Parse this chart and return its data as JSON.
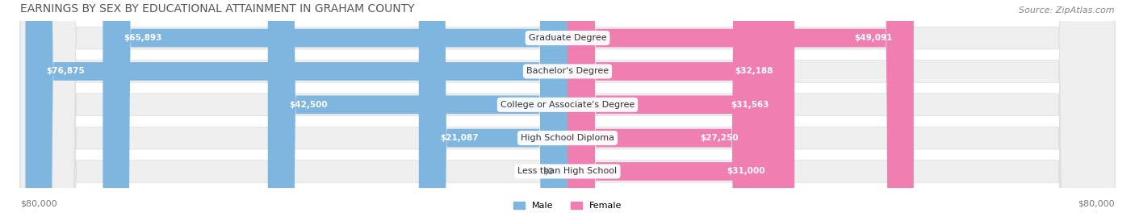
{
  "title": "EARNINGS BY SEX BY EDUCATIONAL ATTAINMENT IN GRAHAM COUNTY",
  "source": "Source: ZipAtlas.com",
  "categories": [
    "Less than High School",
    "High School Diploma",
    "College or Associate's Degree",
    "Bachelor's Degree",
    "Graduate Degree"
  ],
  "male_values": [
    0,
    21087,
    42500,
    76875,
    65893
  ],
  "female_values": [
    31000,
    27250,
    31563,
    32188,
    49091
  ],
  "male_color": "#7EB6E0",
  "female_color": "#F07EB0",
  "bar_bg_color": "#EFEFEF",
  "bar_border_color": "#DDDDDD",
  "max_value": 80000,
  "xlabel_left": "$80,000",
  "xlabel_right": "$80,000",
  "title_fontsize": 10,
  "source_fontsize": 8,
  "label_fontsize": 8,
  "bar_height": 0.55,
  "figsize": [
    14.06,
    2.69
  ],
  "dpi": 100
}
